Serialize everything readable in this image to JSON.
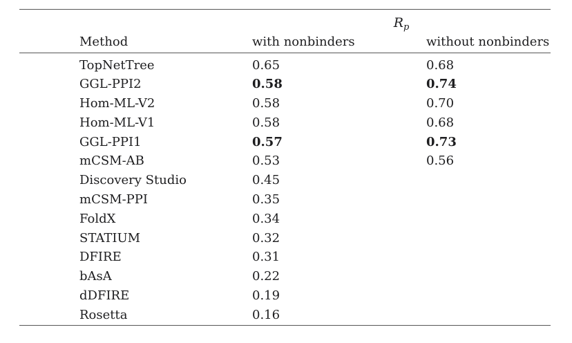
{
  "colors": {
    "background": "#ffffff",
    "text": "#1d1d1f",
    "rule": "#565656"
  },
  "table": {
    "group_header": {
      "symbol": "R",
      "subscript": "p"
    },
    "columns": [
      {
        "label": "Method"
      },
      {
        "label": "with nonbinders"
      },
      {
        "label": "without nonbinders"
      }
    ],
    "rows": [
      {
        "method": "TopNetTree",
        "with_nonbinders": "0.65",
        "without_nonbinders": "0.68",
        "bold_values": false
      },
      {
        "method": "GGL-PPI2",
        "with_nonbinders": "0.58",
        "without_nonbinders": "0.74",
        "bold_values": true
      },
      {
        "method": "Hom-ML-V2",
        "with_nonbinders": "0.58",
        "without_nonbinders": "0.70",
        "bold_values": false
      },
      {
        "method": "Hom-ML-V1",
        "with_nonbinders": "0.58",
        "without_nonbinders": "0.68",
        "bold_values": false
      },
      {
        "method": "GGL-PPI1",
        "with_nonbinders": "0.57",
        "without_nonbinders": "0.73",
        "bold_values": true
      },
      {
        "method": "mCSM-AB",
        "with_nonbinders": "0.53",
        "without_nonbinders": "0.56",
        "bold_values": false
      },
      {
        "method": "Discovery Studio",
        "with_nonbinders": "0.45",
        "without_nonbinders": "",
        "bold_values": false
      },
      {
        "method": "mCSM-PPI",
        "with_nonbinders": "0.35",
        "without_nonbinders": "",
        "bold_values": false
      },
      {
        "method": "FoldX",
        "with_nonbinders": "0.34",
        "without_nonbinders": "",
        "bold_values": false
      },
      {
        "method": "STATIUM",
        "with_nonbinders": "0.32",
        "without_nonbinders": "",
        "bold_values": false
      },
      {
        "method": "DFIRE",
        "with_nonbinders": "0.31",
        "without_nonbinders": "",
        "bold_values": false
      },
      {
        "method": "bAsA",
        "with_nonbinders": "0.22",
        "without_nonbinders": "",
        "bold_values": false
      },
      {
        "method": "dDFIRE",
        "with_nonbinders": "0.19",
        "without_nonbinders": "",
        "bold_values": false
      },
      {
        "method": "Rosetta",
        "with_nonbinders": "0.16",
        "without_nonbinders": "",
        "bold_values": false
      }
    ]
  }
}
